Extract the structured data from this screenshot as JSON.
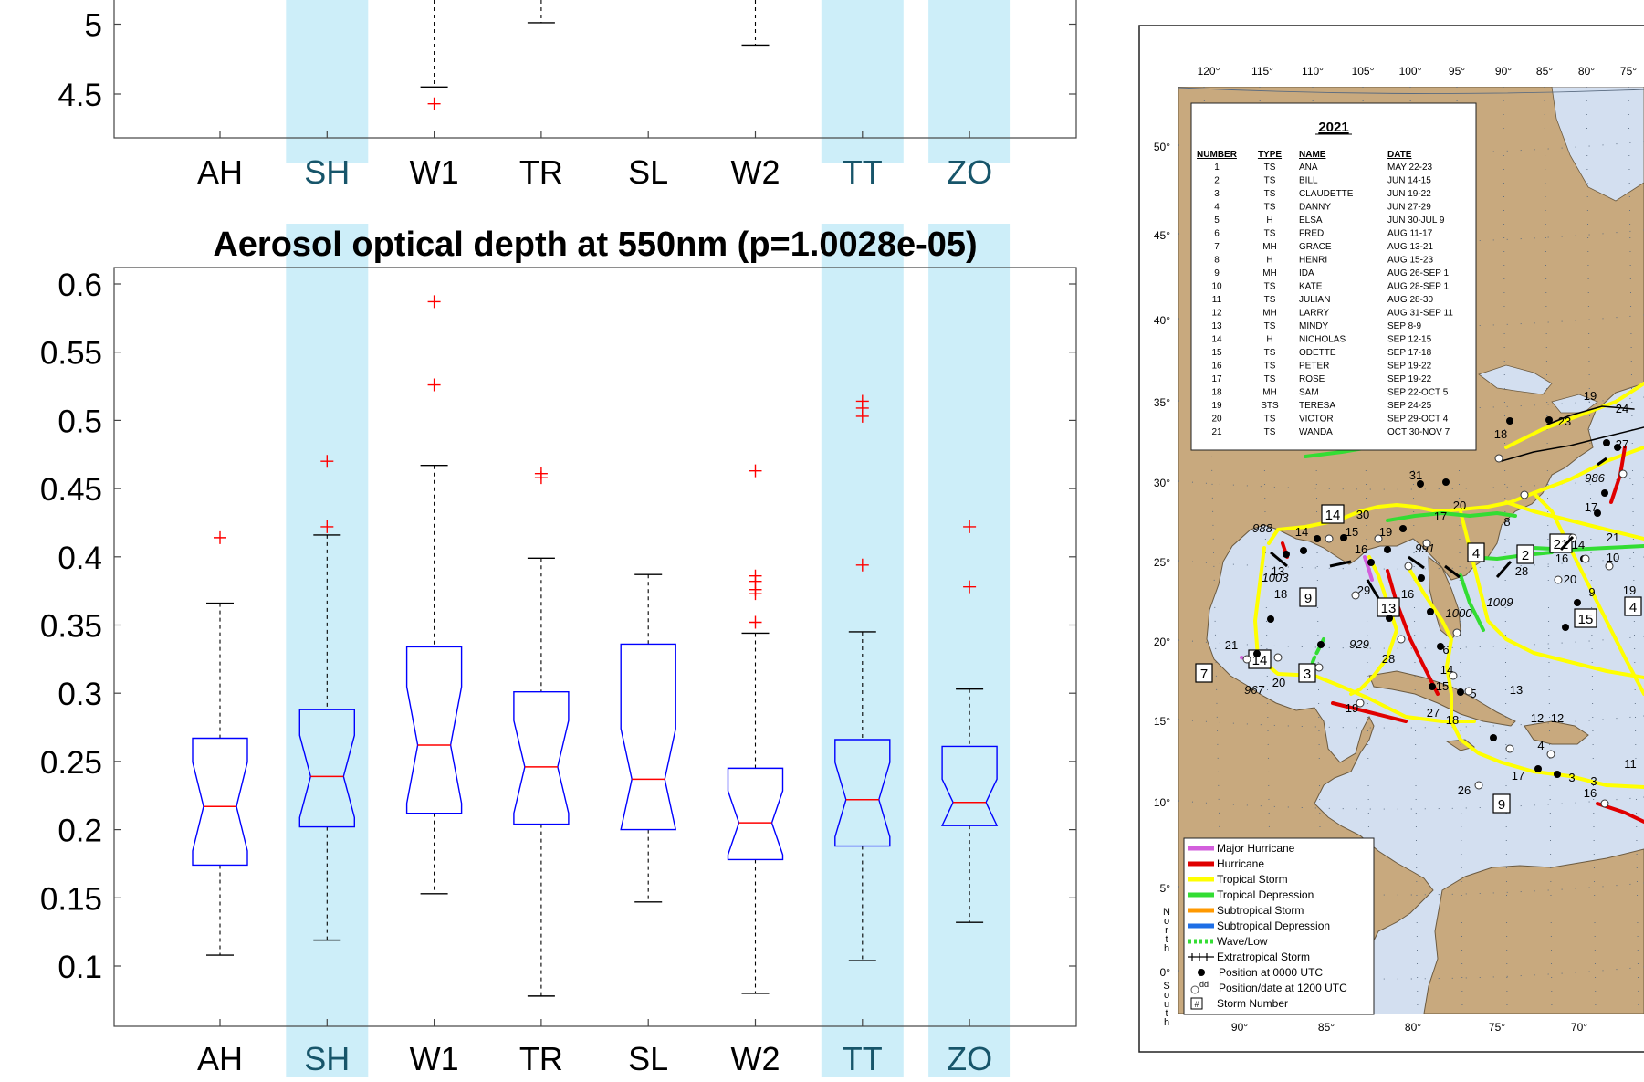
{
  "chart_data": [
    {
      "type": "boxplot",
      "title": "",
      "categories": [
        "AH",
        "SH",
        "W1",
        "TR",
        "SL",
        "W2",
        "TT",
        "ZO"
      ],
      "highlighted_categories": [
        "SH",
        "TT",
        "ZO"
      ],
      "highlight_color": "#cdeef9",
      "y_ticks": [
        4.5,
        5
      ],
      "ylim": [
        4.22,
        5.1
      ],
      "partial": true,
      "visible_elements": [
        {
          "category": "W1",
          "lower_whisker": 4.55,
          "outliers": [
            4.43
          ]
        },
        {
          "category": "TR",
          "lower_whisker": 5.01,
          "outliers": []
        },
        {
          "category": "W2",
          "lower_whisker": 4.85,
          "outliers": []
        }
      ]
    },
    {
      "type": "boxplot",
      "title": "Aerosol optical depth at 550nm (p=1.0028e-05)",
      "categories": [
        "AH",
        "SH",
        "W1",
        "TR",
        "SL",
        "W2",
        "TT",
        "ZO"
      ],
      "highlighted_categories": [
        "SH",
        "TT",
        "ZO"
      ],
      "highlight_color": "#cdeef9",
      "ylim": [
        0.055,
        0.612
      ],
      "y_ticks": [
        0.1,
        0.15,
        0.2,
        0.25,
        0.3,
        0.35,
        0.4,
        0.45,
        0.5,
        0.55,
        0.6
      ],
      "box_color": "#0000ff",
      "median_color": "#ff0000",
      "outlier_color": "#ff0000",
      "boxes": [
        {
          "category": "AH",
          "lower_whisker": 0.108,
          "q1": 0.174,
          "median": 0.217,
          "q3": 0.267,
          "upper_whisker": 0.366,
          "outliers": [
            0.414
          ]
        },
        {
          "category": "SH",
          "lower_whisker": 0.119,
          "q1": 0.202,
          "median": 0.239,
          "q3": 0.288,
          "upper_whisker": 0.416,
          "outliers": [
            0.422,
            0.47
          ]
        },
        {
          "category": "W1",
          "lower_whisker": 0.153,
          "q1": 0.212,
          "median": 0.262,
          "q3": 0.334,
          "upper_whisker": 0.467,
          "outliers": [
            0.526,
            0.587
          ]
        },
        {
          "category": "TR",
          "lower_whisker": 0.078,
          "q1": 0.204,
          "median": 0.246,
          "q3": 0.301,
          "upper_whisker": 0.399,
          "outliers": [
            0.458,
            0.461
          ]
        },
        {
          "category": "SL",
          "lower_whisker": 0.147,
          "q1": 0.2,
          "median": 0.237,
          "q3": 0.336,
          "upper_whisker": 0.387,
          "outliers": []
        },
        {
          "category": "W2",
          "lower_whisker": 0.08,
          "q1": 0.178,
          "median": 0.205,
          "q3": 0.245,
          "upper_whisker": 0.344,
          "outliers": [
            0.352,
            0.373,
            0.376,
            0.382,
            0.386,
            0.463
          ]
        },
        {
          "category": "TT",
          "lower_whisker": 0.104,
          "q1": 0.188,
          "median": 0.222,
          "q3": 0.266,
          "upper_whisker": 0.345,
          "outliers": [
            0.394,
            0.503,
            0.509,
            0.514
          ]
        },
        {
          "category": "ZO",
          "lower_whisker": 0.132,
          "q1": 0.203,
          "median": 0.22,
          "q3": 0.261,
          "upper_whisker": 0.303,
          "outliers": [
            0.378,
            0.422
          ]
        }
      ]
    }
  ],
  "map": {
    "description_hidden": true,
    "table": {
      "year": "2021",
      "headers": [
        "NUMBER",
        "TYPE",
        "NAME",
        "DATE"
      ],
      "rows": [
        [
          "1",
          "TS",
          "ANA",
          "MAY 22-23"
        ],
        [
          "2",
          "TS",
          "BILL",
          "JUN 14-15"
        ],
        [
          "3",
          "TS",
          "CLAUDETTE",
          "JUN 19-22"
        ],
        [
          "4",
          "TS",
          "DANNY",
          "JUN 27-29"
        ],
        [
          "5",
          "H",
          "ELSA",
          "JUN 30-JUL 9"
        ],
        [
          "6",
          "TS",
          "FRED",
          "AUG 11-17"
        ],
        [
          "7",
          "MH",
          "GRACE",
          "AUG 13-21"
        ],
        [
          "8",
          "H",
          "HENRI",
          "AUG 15-23"
        ],
        [
          "9",
          "MH",
          "IDA",
          "AUG 26-SEP 1"
        ],
        [
          "10",
          "TS",
          "KATE",
          "AUG 28-SEP 1"
        ],
        [
          "11",
          "TS",
          "JULIAN",
          "AUG 28-30"
        ],
        [
          "12",
          "MH",
          "LARRY",
          "AUG 31-SEP 11"
        ],
        [
          "13",
          "TS",
          "MINDY",
          "SEP 8-9"
        ],
        [
          "14",
          "H",
          "NICHOLAS",
          "SEP 12-15"
        ],
        [
          "15",
          "TS",
          "ODETTE",
          "SEP 17-18"
        ],
        [
          "16",
          "TS",
          "PETER",
          "SEP 19-22"
        ],
        [
          "17",
          "TS",
          "ROSE",
          "SEP 19-22"
        ],
        [
          "18",
          "MH",
          "SAM",
          "SEP 22-OCT 5"
        ],
        [
          "19",
          "STS",
          "TERESA",
          "SEP 24-25"
        ],
        [
          "20",
          "TS",
          "VICTOR",
          "SEP 29-OCT 4"
        ],
        [
          "21",
          "TS",
          "WANDA",
          "OCT 30-NOV 7"
        ]
      ]
    },
    "top_longitudes": [
      "120°",
      "115°",
      "110°",
      "105°",
      "100°",
      "95°",
      "90°",
      "85°",
      "80°",
      "75°"
    ],
    "bottom_longitudes": [
      "90°",
      "85°",
      "80°",
      "75°",
      "70°"
    ],
    "latitudes": [
      "50°",
      "45°",
      "40°",
      "35°",
      "30°",
      "25°",
      "20°",
      "15°",
      "10°",
      "5°",
      "0°"
    ],
    "north_label": "North",
    "south_label": "South",
    "legend": [
      {
        "label": "Major Hurricane",
        "color": "#d35fdc",
        "style": "line"
      },
      {
        "label": "Hurricane",
        "color": "#e00000",
        "style": "line"
      },
      {
        "label": "Tropical Storm",
        "color": "#ffff00",
        "style": "line"
      },
      {
        "label": "Tropical Depression",
        "color": "#33dd33",
        "style": "line"
      },
      {
        "label": "Subtropical Storm",
        "color": "#ff9900",
        "style": "line"
      },
      {
        "label": "Subtropical Depression",
        "color": "#1e6ee6",
        "style": "line"
      },
      {
        "label": "Wave/Low",
        "color": "#33dd33",
        "style": "dotted"
      },
      {
        "label": "Extratropical Storm",
        "color": "#000000",
        "style": "cross"
      },
      {
        "label": "Position at 0000 UTC",
        "color": "#000000",
        "style": "dot"
      },
      {
        "label": "Position/date at 1200 UTC",
        "color": "#ffffff",
        "style": "circle",
        "prefix": "dd"
      },
      {
        "label": "Storm Number",
        "color": "#000000",
        "style": "box",
        "prefix": "#"
      }
    ],
    "pressure_labels": [
      "988",
      "1003",
      "929",
      "991",
      "1000",
      "1009",
      "986",
      "967"
    ],
    "storm_number_boxes": [
      "14",
      "9",
      "13",
      "4",
      "2",
      "21",
      "15",
      "4",
      "3",
      "7",
      "14",
      "9"
    ],
    "date_labels": [
      "14",
      "15",
      "30",
      "19",
      "16",
      "13",
      "18",
      "29",
      "16",
      "31",
      "17",
      "20",
      "8",
      "28",
      "16",
      "14",
      "21",
      "10",
      "20",
      "19",
      "17",
      "18",
      "19",
      "23",
      "24",
      "27",
      "12",
      "21",
      "20",
      "3",
      "6",
      "14",
      "15",
      "28",
      "27",
      "18",
      "5",
      "13",
      "12",
      "4",
      "17",
      "3",
      "16",
      "11",
      "26",
      "19",
      "9"
    ],
    "colors": {
      "land": "#c8a97e",
      "ocean": "#d3dff0",
      "grid": "#5a6b80"
    }
  }
}
